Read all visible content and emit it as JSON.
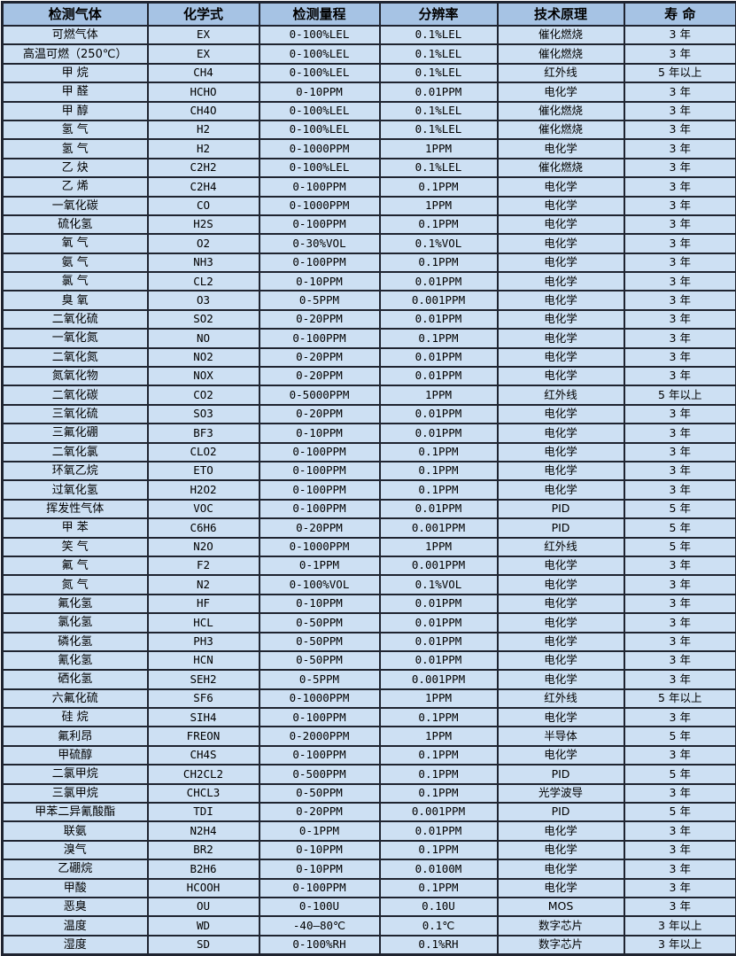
{
  "colors": {
    "header_bg": "#a6c3e4",
    "row_bg": "#cde0f3",
    "border": "#1f2430"
  },
  "table": {
    "columns": [
      "检测气体",
      "化学式",
      "检测量程",
      "分辨率",
      "技术原理",
      "寿 命"
    ],
    "rows": [
      [
        "可燃气体",
        "EX",
        "0-100%LEL",
        "0.1%LEL",
        "催化燃烧",
        "3 年"
      ],
      [
        "高温可燃（250℃）",
        "EX",
        "0-100%LEL",
        "0.1%LEL",
        "催化燃烧",
        "3 年"
      ],
      [
        "甲 烷",
        "CH4",
        "0-100%LEL",
        "0.1%LEL",
        "红外线",
        "5 年以上"
      ],
      [
        "甲 醛",
        "HCHO",
        "0-10PPM",
        "0.01PPM",
        "电化学",
        "3 年"
      ],
      [
        "甲 醇",
        "CH4O",
        "0-100%LEL",
        "0.1%LEL",
        "催化燃烧",
        "3 年"
      ],
      [
        "氢 气",
        "H2",
        "0-100%LEL",
        "0.1%LEL",
        "催化燃烧",
        "3 年"
      ],
      [
        "氢 气",
        "H2",
        "0-1000PPM",
        "1PPM",
        "电化学",
        "3 年"
      ],
      [
        "乙 炔",
        "C2H2",
        "0-100%LEL",
        "0.1%LEL",
        "催化燃烧",
        "3 年"
      ],
      [
        "乙 烯",
        "C2H4",
        "0-100PPM",
        "0.1PPM",
        "电化学",
        "3 年"
      ],
      [
        "一氧化碳",
        "CO",
        "0-1000PPM",
        "1PPM",
        "电化学",
        "3 年"
      ],
      [
        "硫化氢",
        "H2S",
        "0-100PPM",
        "0.1PPM",
        "电化学",
        "3 年"
      ],
      [
        "氧 气",
        "O2",
        "0-30%VOL",
        "0.1%VOL",
        "电化学",
        "3 年"
      ],
      [
        "氨 气",
        "NH3",
        "0-100PPM",
        "0.1PPM",
        "电化学",
        "3 年"
      ],
      [
        "氯 气",
        "CL2",
        "0-10PPM",
        "0.01PPM",
        "电化学",
        "3 年"
      ],
      [
        "臭 氧",
        "O3",
        "0-5PPM",
        "0.001PPM",
        "电化学",
        "3 年"
      ],
      [
        "二氧化硫",
        "SO2",
        "0-20PPM",
        "0.01PPM",
        "电化学",
        "3 年"
      ],
      [
        "一氧化氮",
        "NO",
        "0-100PPM",
        "0.1PPM",
        "电化学",
        "3 年"
      ],
      [
        "二氧化氮",
        "NO2",
        "0-20PPM",
        "0.01PPM",
        "电化学",
        "3 年"
      ],
      [
        "氮氧化物",
        "NOX",
        "0-20PPM",
        "0.01PPM",
        "电化学",
        "3 年"
      ],
      [
        "二氧化碳",
        "CO2",
        "0-5000PPM",
        "1PPM",
        "红外线",
        "5 年以上"
      ],
      [
        "三氧化硫",
        "SO3",
        "0-20PPM",
        "0.01PPM",
        "电化学",
        "3 年"
      ],
      [
        "三氟化硼",
        "BF3",
        "0-10PPM",
        "0.01PPM",
        "电化学",
        "3 年"
      ],
      [
        "二氧化氯",
        "CLO2",
        "0-100PPM",
        "0.1PPM",
        "电化学",
        "3 年"
      ],
      [
        "环氧乙烷",
        "ETO",
        "0-100PPM",
        "0.1PPM",
        "电化学",
        "3 年"
      ],
      [
        "过氧化氢",
        "H2O2",
        "0-100PPM",
        "0.1PPM",
        "电化学",
        "3 年"
      ],
      [
        "挥发性气体",
        "VOC",
        "0-100PPM",
        "0.01PPM",
        "PID",
        "5 年"
      ],
      [
        "甲 苯",
        "C6H6",
        "0-20PPM",
        "0.001PPM",
        "PID",
        "5 年"
      ],
      [
        "笑 气",
        "N2O",
        "0-1000PPM",
        "1PPM",
        "红外线",
        "5 年"
      ],
      [
        "氟 气",
        "F2",
        "0-1PPM",
        "0.001PPM",
        "电化学",
        "3 年"
      ],
      [
        "氮 气",
        "N2",
        "0-100%VOL",
        "0.1%VOL",
        "电化学",
        "3 年"
      ],
      [
        "氟化氢",
        "HF",
        "0-10PPM",
        "0.01PPM",
        "电化学",
        "3 年"
      ],
      [
        "氯化氢",
        "HCL",
        "0-50PPM",
        "0.01PPM",
        "电化学",
        "3 年"
      ],
      [
        "磷化氢",
        "PH3",
        "0-50PPM",
        "0.01PPM",
        "电化学",
        "3 年"
      ],
      [
        "氰化氢",
        "HCN",
        "0-50PPM",
        "0.01PPM",
        "电化学",
        "3 年"
      ],
      [
        "硒化氢",
        "SEH2",
        "0-5PPM",
        "0.001PPM",
        "电化学",
        "3 年"
      ],
      [
        "六氟化硫",
        "SF6",
        "0-1000PPM",
        "1PPM",
        "红外线",
        "5 年以上"
      ],
      [
        "硅 烷",
        "SIH4",
        "0-100PPM",
        "0.1PPM",
        "电化学",
        "3 年"
      ],
      [
        "氟利昂",
        "FREON",
        "0-2000PPM",
        "1PPM",
        "半导体",
        "5 年"
      ],
      [
        "甲硫醇",
        "CH4S",
        "0-100PPM",
        "0.1PPM",
        "电化学",
        "3 年"
      ],
      [
        "二氯甲烷",
        "CH2CL2",
        "0-500PPM",
        "0.1PPM",
        "PID",
        "5 年"
      ],
      [
        "三氯甲烷",
        "CHCL3",
        "0-50PPM",
        "0.1PPM",
        "光学波导",
        "3 年"
      ],
      [
        "甲苯二异氰酸酯",
        "TDI",
        "0-20PPM",
        "0.001PPM",
        "PID",
        "5 年"
      ],
      [
        "联氨",
        "N2H4",
        "0-1PPM",
        "0.01PPM",
        "电化学",
        "3 年"
      ],
      [
        "溴气",
        "BR2",
        "0-10PPM",
        "0.1PPM",
        "电化学",
        "3 年"
      ],
      [
        "乙硼烷",
        "B2H6",
        "0-10PPM",
        "0.0100M",
        "电化学",
        "3 年"
      ],
      [
        "甲酸",
        "HCOOH",
        "0-100PPM",
        "0.1PPM",
        "电化学",
        "3 年"
      ],
      [
        "恶臭",
        "OU",
        "0-100U",
        "0.10U",
        "MOS",
        "3 年"
      ],
      [
        "温度",
        "WD",
        "-40—80℃",
        "0.1℃",
        "数字芯片",
        "3 年以上"
      ],
      [
        "湿度",
        "SD",
        "0-100%RH",
        "0.1%RH",
        "数字芯片",
        "3 年以上"
      ]
    ]
  }
}
